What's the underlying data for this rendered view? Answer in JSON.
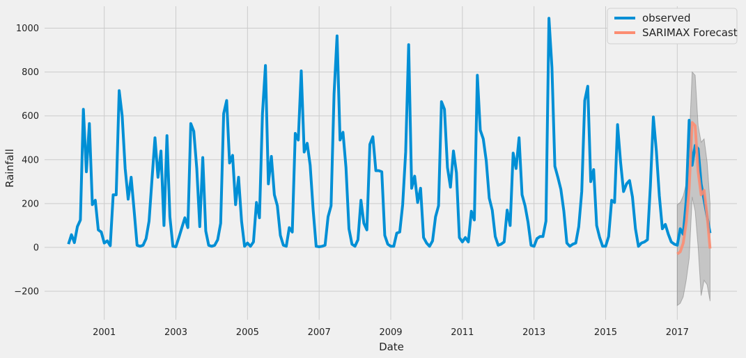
{
  "chart_data": {
    "type": "line",
    "title": "",
    "xlabel": "Date",
    "ylabel": "Rainfall",
    "grid": true,
    "legend_position": "top-right",
    "xlim": [
      "1999-05-01",
      "2018-09-01"
    ],
    "ylim": [
      -330,
      1100
    ],
    "x_ticks": [
      "2001",
      "2003",
      "2005",
      "2007",
      "2009",
      "2011",
      "2013",
      "2015",
      "2017"
    ],
    "y_ticks": [
      -200,
      0,
      200,
      400,
      600,
      800,
      1000
    ],
    "colors": {
      "observed": "#008fd5",
      "forecast": "#fc8d72",
      "confidence_band": "#9a9a9a",
      "grid": "#cbcbcb",
      "background": "#f0f0f0"
    },
    "series": [
      {
        "name": "observed",
        "start": "2000-01",
        "frequency": "monthly",
        "values": [
          15,
          58,
          22,
          95,
          125,
          630,
          345,
          565,
          195,
          215,
          80,
          70,
          20,
          30,
          8,
          240,
          240,
          715,
          600,
          360,
          220,
          320,
          170,
          10,
          5,
          10,
          40,
          120,
          310,
          500,
          320,
          440,
          100,
          510,
          140,
          5,
          3,
          45,
          90,
          135,
          90,
          565,
          530,
          360,
          95,
          410,
          75,
          10,
          5,
          10,
          35,
          110,
          610,
          670,
          385,
          420,
          195,
          320,
          120,
          5,
          20,
          5,
          25,
          205,
          135,
          610,
          830,
          290,
          415,
          240,
          190,
          55,
          10,
          5,
          90,
          70,
          520,
          490,
          805,
          435,
          475,
          375,
          170,
          5,
          3,
          5,
          10,
          140,
          190,
          700,
          965,
          490,
          525,
          365,
          85,
          15,
          5,
          35,
          215,
          110,
          80,
          470,
          505,
          350,
          350,
          345,
          55,
          15,
          5,
          5,
          65,
          70,
          195,
          435,
          925,
          270,
          325,
          205,
          270,
          45,
          20,
          5,
          30,
          140,
          190,
          665,
          630,
          365,
          275,
          440,
          340,
          45,
          25,
          45,
          25,
          165,
          125,
          785,
          535,
          495,
          395,
          225,
          170,
          50,
          10,
          15,
          25,
          170,
          100,
          430,
          360,
          500,
          240,
          190,
          115,
          10,
          5,
          40,
          50,
          50,
          120,
          1045,
          820,
          370,
          320,
          265,
          165,
          20,
          5,
          15,
          20,
          95,
          255,
          670,
          735,
          300,
          355,
          100,
          45,
          5,
          5,
          50,
          215,
          205,
          560,
          390,
          255,
          290,
          305,
          230,
          85,
          5,
          20,
          25,
          35,
          280,
          595,
          440,
          235,
          85,
          105,
          60,
          25,
          15,
          10,
          85,
          60,
          215,
          580,
          375,
          465,
          450,
          290,
          215,
          140,
          65
        ]
      },
      {
        "name": "SARIMAX Forecast",
        "start": "2017-01",
        "frequency": "monthly",
        "values": [
          -30,
          -20,
          20,
          115,
          270,
          570,
          555,
          345,
          240,
          260,
          145,
          -5
        ],
        "lower": [
          -265,
          -255,
          -225,
          -150,
          -50,
          230,
          165,
          0,
          -220,
          -150,
          -170,
          -245
        ],
        "upper": [
          195,
          205,
          235,
          290,
          480,
          800,
          785,
          555,
          480,
          495,
          390,
          200
        ]
      }
    ]
  }
}
